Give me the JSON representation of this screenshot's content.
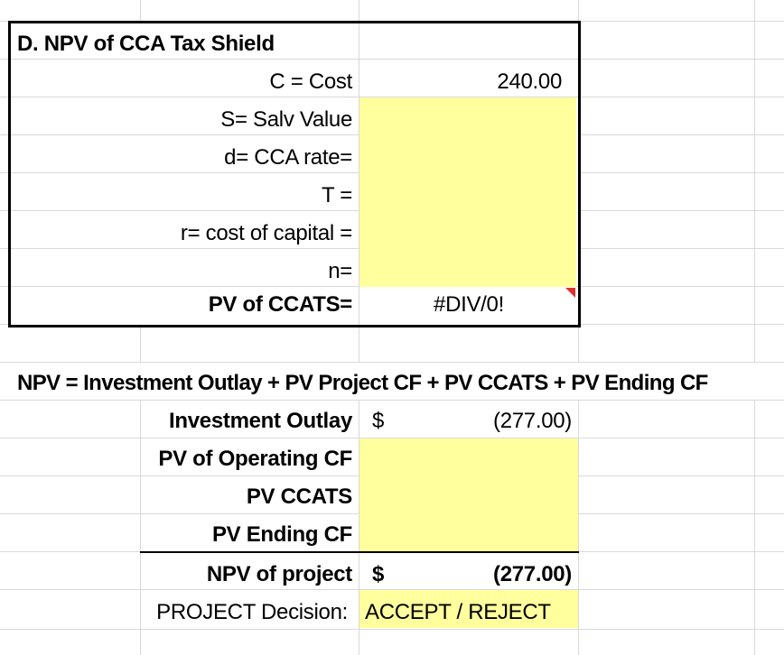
{
  "cca_section": {
    "title": "D. NPV of CCA Tax Shield",
    "rows": [
      {
        "label": "C = Cost",
        "value": "240.00"
      },
      {
        "label": "S= Salv Value",
        "value": ""
      },
      {
        "label": "d= CCA rate=",
        "value": ""
      },
      {
        "label": "T =",
        "value": ""
      },
      {
        "label": "r= cost of capital =",
        "value": ""
      },
      {
        "label": "n=",
        "value": ""
      }
    ],
    "result": {
      "label": "PV of CCATS=",
      "value": "#DIV/0!"
    }
  },
  "npv_section": {
    "formula": "NPV = Investment Outlay + PV Project CF + PV CCATS + PV Ending CF",
    "rows": [
      {
        "label": "Investment Outlay",
        "currency": "$",
        "value": "(277.00)"
      },
      {
        "label": "PV of Operating CF",
        "currency": "",
        "value": ""
      },
      {
        "label": "PV CCATS",
        "currency": "",
        "value": ""
      },
      {
        "label": "PV Ending CF",
        "currency": "",
        "value": ""
      }
    ],
    "total": {
      "label": "NPV of project",
      "currency": "$",
      "value": "(277.00)"
    },
    "decision": {
      "label": "PROJECT Decision:",
      "value": "ACCEPT / REJECT"
    }
  },
  "colors": {
    "input_fill": "#ffff9e",
    "gridline": "#d9d9d9",
    "error_flag": "#e03030"
  }
}
